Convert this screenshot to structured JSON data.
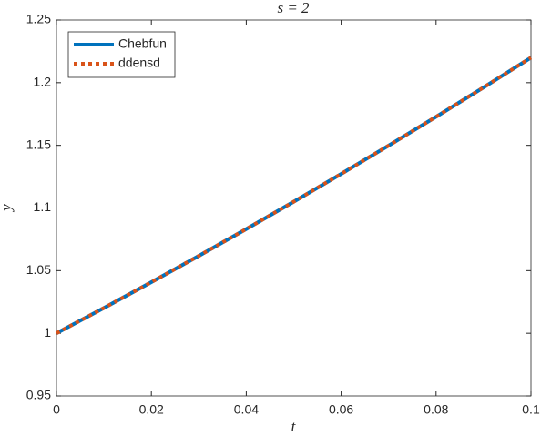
{
  "chart_data": {
    "type": "line",
    "title": "s = 2",
    "x_label": "t",
    "y_label": "y",
    "x": [
      0,
      0.01,
      0.02,
      0.03,
      0.04,
      0.05,
      0.06,
      0.07,
      0.08,
      0.09,
      0.1
    ],
    "series": [
      {
        "name": "Chebfun",
        "color": "#0072bd",
        "style": "solid",
        "values": [
          1,
          1.0202,
          1.0408,
          1.0618,
          1.0832,
          1.105,
          1.1272,
          1.1498,
          1.1728,
          1.1962,
          1.22
        ]
      },
      {
        "name": "ddensd",
        "color": "#d95319",
        "style": "dotted",
        "values": [
          1,
          1.0202,
          1.0408,
          1.0618,
          1.0832,
          1.105,
          1.1272,
          1.1498,
          1.1728,
          1.1962,
          1.22
        ]
      }
    ],
    "xlim": [
      0,
      0.1
    ],
    "xticks": [
      0,
      0.02,
      0.04,
      0.06,
      0.08,
      0.1
    ],
    "ylim": [
      0.95,
      1.25
    ],
    "yticks": [
      0.95,
      1,
      1.05,
      1.1,
      1.15,
      1.2,
      1.25
    ],
    "grid": false,
    "legend": "northwest"
  }
}
